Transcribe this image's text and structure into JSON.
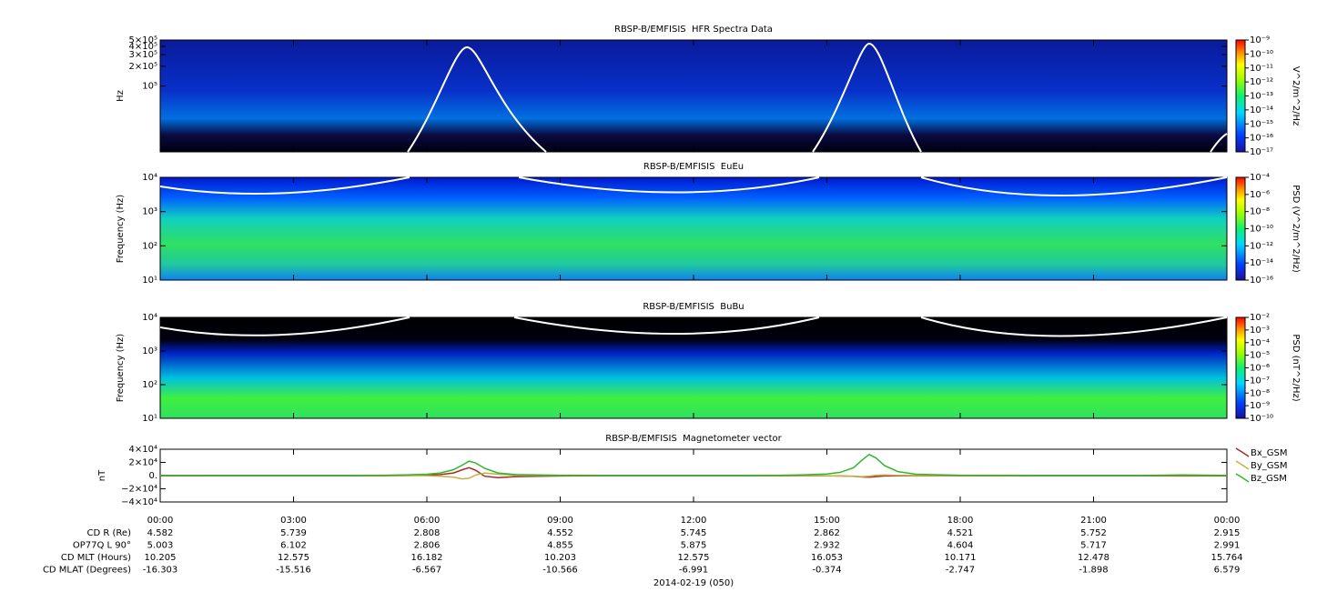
{
  "chart_data": [
    {
      "type": "spectrogram",
      "title": "RBSP-B/EMFISIS  HFR Spectra Data",
      "y_label": "Hz",
      "log_y": true,
      "ylim": [
        10000,
        500000
      ],
      "yticks": [
        {
          "value": 100000,
          "label": "10⁵"
        },
        {
          "value": 200000,
          "label": "2×10⁵"
        },
        {
          "value": 300000,
          "label": "3×10⁵"
        },
        {
          "value": 400000,
          "label": "4×10⁵"
        },
        {
          "value": 500000,
          "label": "5×10⁵"
        }
      ],
      "colorbar": {
        "label": "V^2/m^2/Hz",
        "log": true,
        "lim": [
          1e-17,
          1e-09
        ],
        "ticks": [
          {
            "value": 1e-09,
            "label": "10⁻⁹"
          },
          {
            "value": 1e-10,
            "label": "10⁻¹⁰"
          },
          {
            "value": 1e-11,
            "label": "10⁻¹¹"
          },
          {
            "value": 1e-12,
            "label": "10⁻¹²"
          },
          {
            "value": 1e-13,
            "label": "10⁻¹³"
          },
          {
            "value": 1e-14,
            "label": "10⁻¹⁴"
          },
          {
            "value": 1e-15,
            "label": "10⁻¹⁵"
          },
          {
            "value": 1e-16,
            "label": "10⁻¹⁶"
          },
          {
            "value": 1e-17,
            "label": "10⁻¹⁷"
          }
        ]
      }
    },
    {
      "type": "spectrogram",
      "title": "RBSP-B/EMFISIS  EuEu",
      "y_label": "Frequency (Hz)",
      "log_y": true,
      "ylim": [
        10,
        10000
      ],
      "yticks": [
        {
          "value": 10,
          "label": "10¹"
        },
        {
          "value": 100,
          "label": "10²"
        },
        {
          "value": 1000,
          "label": "10³"
        },
        {
          "value": 10000,
          "label": "10⁴"
        }
      ],
      "colorbar": {
        "label": "PSD (V^2/m^2/Hz)",
        "log": true,
        "lim": [
          1e-16,
          0.0001
        ],
        "ticks": [
          {
            "value": 0.0001,
            "label": "10⁻⁴"
          },
          {
            "value": 1e-06,
            "label": "10⁻⁶"
          },
          {
            "value": 1e-08,
            "label": "10⁻⁸"
          },
          {
            "value": 1e-10,
            "label": "10⁻¹⁰"
          },
          {
            "value": 1e-12,
            "label": "10⁻¹²"
          },
          {
            "value": 1e-14,
            "label": "10⁻¹⁴"
          },
          {
            "value": 1e-16,
            "label": "10⁻¹⁶"
          }
        ]
      }
    },
    {
      "type": "spectrogram",
      "title": "RBSP-B/EMFISIS  BuBu",
      "y_label": "Frequency (Hz)",
      "log_y": true,
      "ylim": [
        10,
        10000
      ],
      "yticks": [
        {
          "value": 10,
          "label": "10¹"
        },
        {
          "value": 100,
          "label": "10²"
        },
        {
          "value": 1000,
          "label": "10³"
        },
        {
          "value": 10000,
          "label": "10⁴"
        }
      ],
      "colorbar": {
        "label": "PSD (nT^2/Hz)",
        "log": true,
        "lim": [
          1e-10,
          0.01
        ],
        "ticks": [
          {
            "value": 0.01,
            "label": "10⁻²"
          },
          {
            "value": 0.001,
            "label": "10⁻³"
          },
          {
            "value": 0.0001,
            "label": "10⁻⁴"
          },
          {
            "value": 1e-05,
            "label": "10⁻⁵"
          },
          {
            "value": 1e-06,
            "label": "10⁻⁶"
          },
          {
            "value": 1e-07,
            "label": "10⁻⁷"
          },
          {
            "value": 1e-08,
            "label": "10⁻⁸"
          },
          {
            "value": 1e-09,
            "label": "10⁻⁹"
          },
          {
            "value": 1e-10,
            "label": "10⁻¹⁰"
          }
        ]
      }
    },
    {
      "type": "line",
      "title": "RBSP-B/EMFISIS  Magnetometer vector",
      "y_label": "nT",
      "legend": "right",
      "ylim": [
        -40000,
        40000
      ],
      "yticks": [
        {
          "value": 40000,
          "label": "4×10⁴"
        },
        {
          "value": 20000,
          "label": "2×10⁴"
        },
        {
          "value": 0,
          "label": "0."
        },
        {
          "value": -20000,
          "label": "−2×10⁴"
        },
        {
          "value": -40000,
          "label": "−4×10⁴"
        }
      ],
      "xlim": [
        0,
        24
      ],
      "xticks": [
        {
          "value": 0,
          "label": "00:00"
        },
        {
          "value": 3,
          "label": "03:00"
        },
        {
          "value": 6,
          "label": "06:00"
        },
        {
          "value": 9,
          "label": "09:00"
        },
        {
          "value": 12,
          "label": "12:00"
        },
        {
          "value": 15,
          "label": "15:00"
        },
        {
          "value": 18,
          "label": "18:00"
        },
        {
          "value": 21,
          "label": "21:00"
        },
        {
          "value": 24,
          "label": "00:00"
        }
      ],
      "x": [
        0,
        2,
        4,
        5,
        5.5,
        6,
        6.3,
        6.6,
        6.8,
        6.95,
        7.1,
        7.3,
        7.6,
        8,
        9,
        10,
        11,
        12,
        13,
        14,
        14.5,
        15,
        15.3,
        15.6,
        15.8,
        15.95,
        16.1,
        16.3,
        16.6,
        17,
        18,
        20,
        22,
        23,
        24
      ],
      "series": [
        {
          "name": "Bx_GSM",
          "color": "#a52a2a",
          "values": [
            -200,
            -200,
            -200,
            -200,
            0,
            500,
            1500,
            4000,
            9000,
            12000,
            8000,
            -1000,
            -3000,
            -1500,
            -500,
            -200,
            -200,
            -200,
            -200,
            -200,
            -200,
            -300,
            -600,
            -1000,
            -2000,
            -2500,
            -1500,
            -600,
            -300,
            -200,
            -200,
            -200,
            -200,
            -500,
            -300
          ]
        },
        {
          "name": "By_GSM",
          "color": "#c8b040",
          "values": [
            300,
            200,
            200,
            200,
            100,
            -200,
            -800,
            -2500,
            -5000,
            -4000,
            1000,
            4000,
            2000,
            500,
            200,
            200,
            200,
            200,
            200,
            200,
            100,
            -100,
            -500,
            -1200,
            -1500,
            -800,
            500,
            1000,
            400,
            200,
            200,
            200,
            200,
            300,
            200
          ]
        },
        {
          "name": "Bz_GSM",
          "color": "#2eb82e",
          "values": [
            400,
            400,
            300,
            500,
            1000,
            2000,
            4000,
            9000,
            16000,
            22000,
            19000,
            11000,
            4000,
            1500,
            500,
            300,
            300,
            300,
            300,
            500,
            1200,
            2500,
            5000,
            12000,
            24000,
            32000,
            27000,
            15000,
            6000,
            2000,
            600,
            300,
            300,
            900,
            400
          ]
        }
      ],
      "ephemeris": [
        {
          "label": "CD R (Re)",
          "values": [
            4.582,
            5.739,
            2.808,
            4.552,
            5.745,
            2.862,
            4.521,
            5.752,
            2.915
          ]
        },
        {
          "label": "OP77Q L 90°",
          "values": [
            5.003,
            6.102,
            2.806,
            4.855,
            5.875,
            2.932,
            4.604,
            5.717,
            2.991
          ]
        },
        {
          "label": "CD MLT (Hours)",
          "values": [
            10.205,
            12.575,
            16.182,
            10.203,
            12.575,
            16.053,
            10.171,
            12.478,
            15.764
          ]
        },
        {
          "label": "CD MLAT (Degrees)",
          "values": [
            -16.303,
            -15.516,
            -6.567,
            -10.566,
            -6.991,
            -0.374,
            -2.747,
            -1.898,
            6.579
          ]
        }
      ],
      "x_label": "2014-02-19 (050)"
    }
  ]
}
